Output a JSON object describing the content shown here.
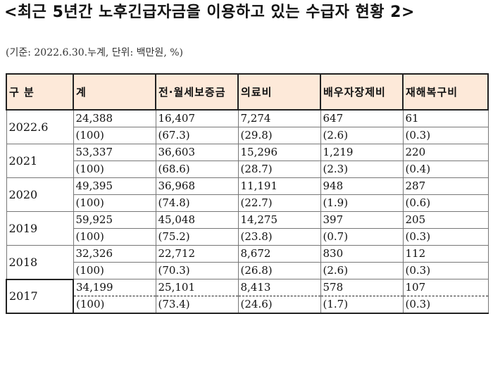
{
  "title": "<최근 5년간 노후긴급자금을 이용하고 있는 수급자 현황 2>",
  "subtitle": "(기준: 2022.6.30.누계, 단위: 백만원, %)",
  "table": {
    "headers": [
      "구 분",
      "계",
      "전·월세보증금",
      "의료비",
      "배우자장제비",
      "재해복구비"
    ],
    "rows": [
      {
        "year": "2022.6",
        "amounts": [
          "24,388",
          "16,407",
          "7,274",
          "647",
          "61"
        ],
        "shares": [
          "(100)",
          "(67.3)",
          "(29.8)",
          "(2.6)",
          "(0.3)"
        ]
      },
      {
        "year": "2021",
        "amounts": [
          "53,337",
          "36,603",
          "15,296",
          "1,219",
          "220"
        ],
        "shares": [
          "(100)",
          "(68.6)",
          "(28.7)",
          "(2.3)",
          "(0.4)"
        ]
      },
      {
        "year": "2020",
        "amounts": [
          "49,395",
          "36,968",
          "11,191",
          "948",
          "287"
        ],
        "shares": [
          "(100)",
          "(74.8)",
          "(22.7)",
          "(1.9)",
          "(0.6)"
        ]
      },
      {
        "year": "2019",
        "amounts": [
          "59,925",
          "45,048",
          "14,275",
          "397",
          "205"
        ],
        "shares": [
          "(100)",
          "(75.2)",
          "(23.8)",
          "(0.7)",
          "(0.3)"
        ]
      },
      {
        "year": "2018",
        "amounts": [
          "32,326",
          "22,712",
          "8,672",
          "830",
          "112"
        ],
        "shares": [
          "(100)",
          "(70.3)",
          "(26.8)",
          "(2.6)",
          "(0.3)"
        ]
      },
      {
        "year": "2017",
        "amounts": [
          "34,199",
          "25,101",
          "8,413",
          "578",
          "107"
        ],
        "shares": [
          "(100)",
          "(73.4)",
          "(24.6)",
          "(1.7)",
          "(0.3)"
        ]
      }
    ]
  }
}
